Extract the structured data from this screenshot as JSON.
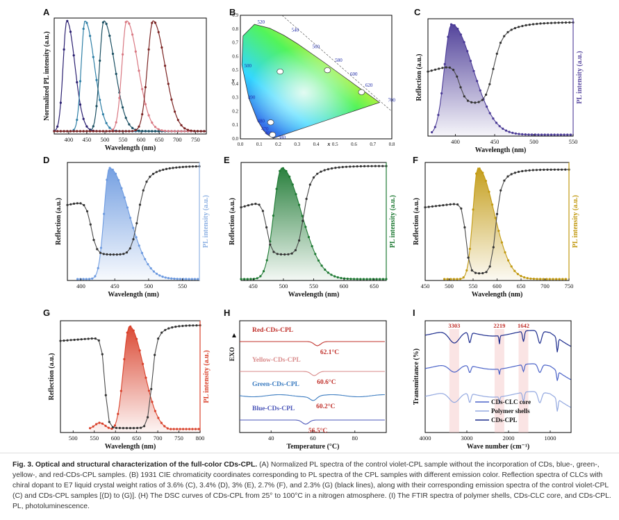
{
  "figure": {
    "caption_bold": "Fig. 3. Optical and structural characterization of the full-color CDs-CPL.",
    "caption_text": "(A) Normalized PL spectra of the control violet-CPL sample without the incorporation of CDs, blue-, green-, yellow-, and red-CDs-CPL samples. (B) 1931 CIE chromaticity coordinates corresponding to PL spectra of the CPL samples with different emission color. Reflection spectra of CLCs with chiral dopant to E7 liquid crystal weight ratios of 3.6% (C), 3.4% (D), 3% (E), 2.7% (F), and 2.3% (G) (black lines), along with their corresponding emission spectra of the control violet-CPL (C) and CDs-CPL samples [(D) to (G)]. (H) The DSC curves of CDs-CPL from 25° to 100°C in a nitrogen atmosphere. (I) The FTIR spectra of polymer shells, CDs-CLC core, and CDs-CPL. PL, photoluminescence."
  },
  "chart_data": [
    {
      "panel": "A",
      "type": "line",
      "xlabel": "Wavelength (nm)",
      "ylabel": "Normalized PL intensity (a.u.)",
      "xlim": [
        360,
        780
      ],
      "xticks": [
        400,
        450,
        500,
        550,
        600,
        650,
        700,
        750
      ],
      "series": [
        {
          "name": "violet",
          "color": "#2a1f70",
          "peak": 395,
          "wl": 16,
          "wr": 34
        },
        {
          "name": "blue",
          "color": "#2e7fa6",
          "peak": 445,
          "wl": 16,
          "wr": 40
        },
        {
          "name": "green",
          "color": "#1a4f62",
          "peak": 497,
          "wl": 18,
          "wr": 46
        },
        {
          "name": "yellow",
          "color": "#d97882",
          "peak": 560,
          "wl": 20,
          "wr": 48
        },
        {
          "name": "red",
          "color": "#7a2322",
          "peak": 633,
          "wl": 24,
          "wr": 50
        }
      ]
    },
    {
      "panel": "B",
      "type": "scatter",
      "xlabel": "x",
      "ylabel": "y",
      "xlim": [
        0,
        0.8
      ],
      "ylim": [
        0,
        0.9
      ],
      "xticks": [
        "0.0",
        "0.1",
        "0.2",
        "0.3",
        "0.4",
        "0.5",
        "0.6",
        "0.7",
        "0.8"
      ],
      "yticks": [
        "0.0",
        "0.1",
        "0.2",
        "0.3",
        "0.4",
        "0.5",
        "0.6",
        "0.7",
        "0.8",
        "0.9"
      ],
      "locus_labels": [
        "460",
        "470",
        "480",
        "490",
        "500",
        "520",
        "540",
        "560",
        "580",
        "600",
        "620",
        "700",
        "380"
      ],
      "points": [
        {
          "x": 0.17,
          "y": 0.03
        },
        {
          "x": 0.16,
          "y": 0.12
        },
        {
          "x": 0.21,
          "y": 0.49
        },
        {
          "x": 0.46,
          "y": 0.5
        },
        {
          "x": 0.64,
          "y": 0.34
        }
      ]
    },
    {
      "panel": "C",
      "type": "line",
      "xlabel": "Wavelength (nm)",
      "ylabel_left": "Reflection (a.u.)",
      "ylabel_right": "PL intensity (a.u.)",
      "right_color": "#5a4aa0",
      "xlim": [
        365,
        550
      ],
      "xticks": [
        400,
        450,
        500,
        550
      ],
      "pl": {
        "peak": 395,
        "wl": 14,
        "wr": 42,
        "start": 370,
        "color": "#4a3a96"
      },
      "refl": {
        "start": 0.55,
        "pre": 0.62,
        "bottom": 0.28,
        "left_edge": 405,
        "right_edge": 447,
        "plateau": 0.97
      }
    },
    {
      "panel": "D",
      "type": "line",
      "xlabel": "Wavelength (nm)",
      "ylabel_left": "Reflection (a.u.)",
      "ylabel_right": "PL intensity (a.u.)",
      "right_color": "#8fb2e3",
      "xlim": [
        380,
        575
      ],
      "xticks": [
        400,
        450,
        500,
        550
      ],
      "pl": {
        "peak": 442,
        "wl": 12,
        "wr": 44,
        "start": 395,
        "color": "#6e9be0"
      },
      "refl": {
        "start": 0.64,
        "pre": 0.68,
        "bottom": 0.22,
        "left_edge": 415,
        "right_edge": 483,
        "plateau": 0.97
      }
    },
    {
      "panel": "E",
      "type": "line",
      "xlabel": "Wavelength (nm)",
      "ylabel_left": "Reflection (a.u.)",
      "ylabel_right": "PL intensity (a.u.)",
      "right_color": "#1f7a34",
      "xlim": [
        430,
        670
      ],
      "xticks": [
        450,
        500,
        550,
        600,
        650
      ],
      "pl": {
        "peak": 497,
        "wl": 20,
        "wr": 50,
        "start": 430,
        "color": "#1f7a34"
      },
      "refl": {
        "start": 0.62,
        "pre": 0.68,
        "bottom": 0.22,
        "left_edge": 472,
        "right_edge": 532,
        "plateau": 0.97
      }
    },
    {
      "panel": "F",
      "type": "line",
      "xlabel": "Wavelength (nm)",
      "ylabel_left": "Reflection (a.u.)",
      "ylabel_right": "PL intensity (a.u.)",
      "right_color": "#c29a12",
      "xlim": [
        450,
        750
      ],
      "xticks": [
        450,
        500,
        550,
        600,
        650,
        700,
        750
      ],
      "pl": {
        "peak": 560,
        "wl": 16,
        "wr": 52,
        "start": 490,
        "color": "#c29a12"
      },
      "refl": {
        "start": 0.62,
        "pre": 0.66,
        "bottom": 0.06,
        "left_edge": 535,
        "right_edge": 596,
        "plateau": 0.94
      }
    },
    {
      "panel": "G",
      "type": "line",
      "xlabel": "Wavelength (nm)",
      "ylabel_left": "Reflection (a.u.)",
      "ylabel_right": "PL intensity (a.u.)",
      "right_color": "#d9412b",
      "xlim": [
        470,
        800
      ],
      "xticks": [
        500,
        550,
        600,
        650,
        700,
        750,
        800
      ],
      "pl": {
        "peak": 633,
        "wl": 22,
        "wr": 52,
        "start": 540,
        "color": "#d9412b",
        "baseline": 0.02
      },
      "refl": {
        "start": 0.82,
        "pre": 0.85,
        "bottom": 0.04,
        "left_edge": 575,
        "right_edge": 685,
        "plateau": 0.96
      }
    },
    {
      "panel": "H",
      "type": "line",
      "xlabel": "Temperature (°C)",
      "ylabel": "EXO",
      "xlim": [
        25,
        95
      ],
      "xticks": [
        40,
        60,
        80
      ],
      "series": [
        {
          "name": "Red-CDs-CPL",
          "color": "#c0302a",
          "tm": 62.1,
          "label": "62.1°C"
        },
        {
          "name": "Yellow-CDs-CPL",
          "color": "#d98a8a",
          "tm": 60.6,
          "label": "60.6°C"
        },
        {
          "name": "Green-CDs-CPL",
          "color": "#3a7bc0",
          "tm": 60.2,
          "label": "60.2°C"
        },
        {
          "name": "Blue-CDs-CPL",
          "color": "#4a55b8",
          "tm": 56.5,
          "label": "56.5°C"
        }
      ]
    },
    {
      "panel": "I",
      "type": "line",
      "xlabel": "Wave number (cm⁻¹)",
      "ylabel": "Transmittance (%)",
      "xlim": [
        4000,
        500
      ],
      "xticks": [
        4000,
        3000,
        2000,
        1000
      ],
      "bands": [
        3303,
        2219,
        1642
      ],
      "series": [
        {
          "name": "CDs-CLC core",
          "color": "#4a62c8"
        },
        {
          "name": "Polymer shells",
          "color": "#93a8e0"
        },
        {
          "name": "CDs-CPL",
          "color": "#1a2a8c"
        }
      ]
    }
  ]
}
